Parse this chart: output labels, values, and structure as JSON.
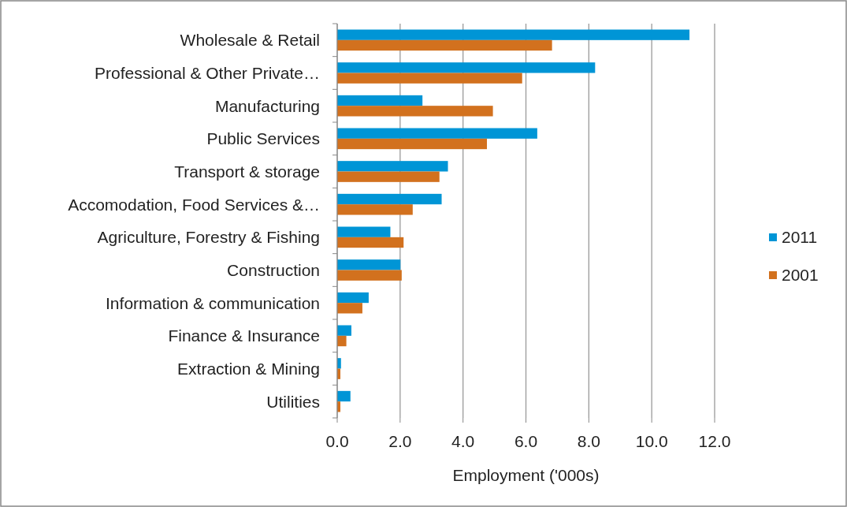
{
  "chart_data": {
    "type": "bar",
    "orientation": "horizontal",
    "xlabel": "Employment ('000s)",
    "categories": [
      "Wholesale & Retail",
      "Professional & Other Private…",
      "Manufacturing",
      "Public Services",
      "Transport & storage",
      "Accomodation, Food Services &…",
      "Agriculture, Forestry & Fishing",
      "Construction",
      "Information & communication",
      "Finance & Insurance",
      "Extraction & Mining",
      "Utilities"
    ],
    "series": [
      {
        "name": "2011",
        "color": "#0095d6",
        "values": [
          11.2,
          8.2,
          2.71,
          6.36,
          3.52,
          3.32,
          1.69,
          2.01,
          1.0,
          0.45,
          0.12,
          0.42
        ]
      },
      {
        "name": "2001",
        "color": "#d2711e",
        "values": [
          6.83,
          5.88,
          4.95,
          4.76,
          3.25,
          2.4,
          2.11,
          2.05,
          0.8,
          0.29,
          0.1,
          0.1
        ]
      }
    ],
    "xlim": [
      0,
      12
    ],
    "xticks": [
      {
        "value": 0,
        "label": "0.0"
      },
      {
        "value": 2,
        "label": "2.0"
      },
      {
        "value": 4,
        "label": "4.0"
      },
      {
        "value": 6,
        "label": "6.0"
      },
      {
        "value": 8,
        "label": "8.0"
      },
      {
        "value": 10,
        "label": "10.0"
      },
      {
        "value": 12,
        "label": "12.0"
      }
    ],
    "grid": "x",
    "legend": "right"
  }
}
